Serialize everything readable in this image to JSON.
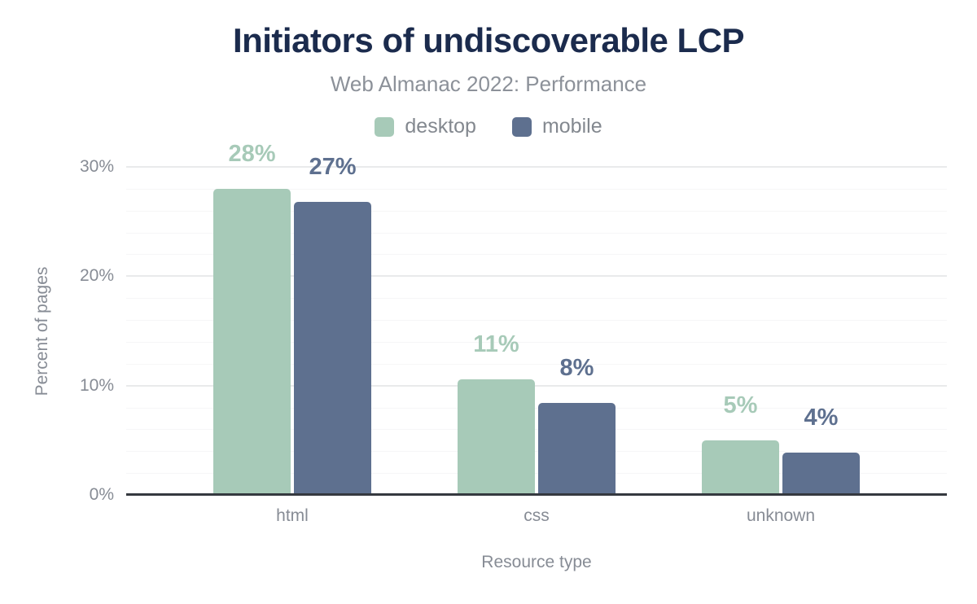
{
  "page": {
    "background": "#ffffff"
  },
  "chart_data": {
    "type": "bar",
    "title": "Initiators of undiscoverable LCP",
    "subtitle": "Web Almanac 2022: Performance",
    "xlabel": "Resource type",
    "ylabel": "Percent of pages",
    "categories": [
      "html",
      "css",
      "unknown"
    ],
    "series": [
      {
        "name": "desktop",
        "color": "#a7cab8",
        "values": [
          28,
          10.6,
          5.0
        ],
        "value_labels": [
          "28%",
          "11%",
          "5%"
        ]
      },
      {
        "name": "mobile",
        "color": "#5e708f",
        "values": [
          26.8,
          8.4,
          3.9
        ],
        "value_labels": [
          "27%",
          "8%",
          "4%"
        ]
      }
    ],
    "ylim": [
      0,
      30
    ],
    "yticks": [
      0,
      10,
      20,
      30
    ],
    "ytick_labels": [
      "0%",
      "10%",
      "20%",
      "30%"
    ],
    "minor_grid_step": 2,
    "major_grid_step": 10,
    "grid": true,
    "legend_position": "top-center",
    "colors": {
      "title": "#1b2b4d",
      "subtitle": "#8c9199",
      "axis_text": "#878c95",
      "legend_text": "#83888f",
      "axis_line": "#35393f",
      "grid_major": "#e9eaeb",
      "grid_minor": "#f6f6f7"
    }
  }
}
